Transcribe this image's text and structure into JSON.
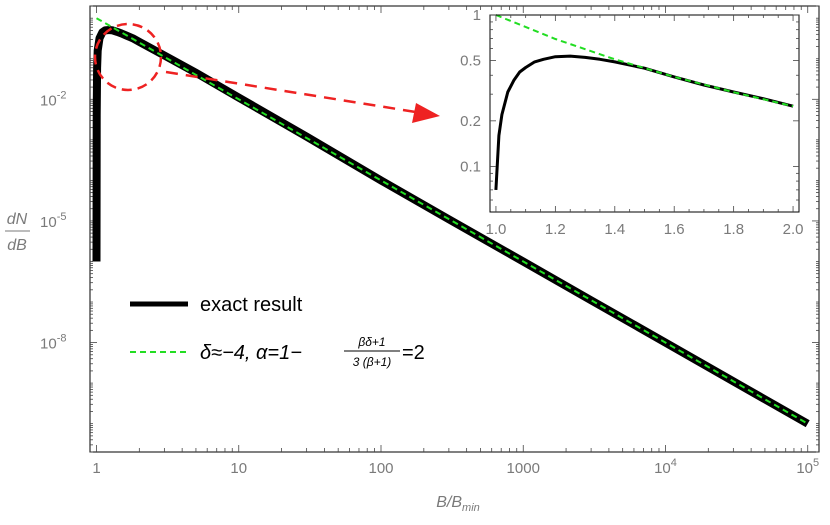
{
  "chart_data": [
    {
      "type": "line",
      "title": "",
      "xlabel": "B/B",
      "xlabel_sub": "min",
      "ylabel_num": "dN",
      "ylabel_den": "dB",
      "x_scale": "log",
      "y_scale": "log",
      "xlim": [
        0.9,
        120000
      ],
      "ylim": [
        2e-11,
        2
      ],
      "x_ticks": [
        {
          "value": 1,
          "base": "1",
          "exp": ""
        },
        {
          "value": 10,
          "base": "10",
          "exp": ""
        },
        {
          "value": 100,
          "base": "100",
          "exp": ""
        },
        {
          "value": 1000,
          "base": "1000",
          "exp": ""
        },
        {
          "value": 10000,
          "base": "10",
          "exp": "4"
        },
        {
          "value": 100000,
          "base": "10",
          "exp": "5"
        }
      ],
      "y_ticks": [
        {
          "value": 0.01,
          "base": "10",
          "exp": "-2"
        },
        {
          "value": 1e-05,
          "base": "10",
          "exp": "-5"
        },
        {
          "value": 1e-08,
          "base": "10",
          "exp": "-8"
        }
      ],
      "grid": false,
      "legend_position": "bottom-left",
      "series": [
        {
          "name": "exact result",
          "color": "#000000",
          "style": "solid",
          "x": [
            1.0,
            1.003,
            1.01,
            1.02,
            1.05,
            1.1,
            1.15,
            1.2,
            1.25,
            1.3,
            1.4,
            1.5,
            1.6,
            1.8,
            2,
            3,
            5,
            10,
            30,
            100,
            300,
            1000,
            3000,
            10000,
            30000,
            100000
          ],
          "y": [
            1e-06,
            0.004,
            0.06,
            0.16,
            0.32,
            0.45,
            0.5,
            0.51,
            0.51,
            0.5,
            0.46,
            0.42,
            0.38,
            0.32,
            0.26,
            0.12,
            0.045,
            0.011,
            0.0012,
            0.0001,
            1.1e-05,
            1e-06,
            1.1e-07,
            1e-08,
            1.1e-09,
            1e-10
          ]
        },
        {
          "name": "δ≈−4, α=1−(βδ+1)/(3(β+1))=2",
          "color": "#22dd22",
          "style": "dashed",
          "x": [
            1,
            100000
          ],
          "y": [
            1,
            1e-10
          ]
        }
      ],
      "legend": {
        "exact_label": "exact result",
        "fit_prefix": "δ≈−4, α=1−",
        "fit_frac_num": "βδ+1",
        "fit_frac_den": "3 (β+1)",
        "fit_suffix": "=2"
      }
    },
    {
      "type": "line",
      "title": "",
      "x_scale": "linear",
      "y_scale": "log",
      "xlim": [
        0.98,
        2.02
      ],
      "ylim": [
        0.05,
        1
      ],
      "x_ticks": [
        {
          "value": 1.0,
          "label": "1.0"
        },
        {
          "value": 1.2,
          "label": "1.2"
        },
        {
          "value": 1.4,
          "label": "1.4"
        },
        {
          "value": 1.6,
          "label": "1.6"
        },
        {
          "value": 1.8,
          "label": "1.8"
        },
        {
          "value": 2.0,
          "label": "2.0"
        }
      ],
      "y_ticks": [
        {
          "value": 1,
          "label": "1"
        },
        {
          "value": 0.5,
          "label": "0.5"
        },
        {
          "value": 0.2,
          "label": "0.2"
        },
        {
          "value": 0.1,
          "label": "0.1"
        }
      ],
      "series": [
        {
          "name": "exact result",
          "color": "#000000",
          "x": [
            1.0,
            1.01,
            1.02,
            1.04,
            1.06,
            1.08,
            1.1,
            1.13,
            1.16,
            1.2,
            1.25,
            1.3,
            1.35,
            1.4,
            1.5,
            1.6,
            1.7,
            1.8,
            1.9,
            2.0
          ],
          "y": [
            0.07,
            0.16,
            0.22,
            0.31,
            0.37,
            0.42,
            0.45,
            0.49,
            0.51,
            0.53,
            0.535,
            0.525,
            0.51,
            0.49,
            0.445,
            0.39,
            0.345,
            0.31,
            0.28,
            0.25
          ]
        },
        {
          "name": "δ≈−4, α=1−(βδ+1)/(3(β+1))=2",
          "color": "#22dd22",
          "x": [
            1.0,
            1.2,
            1.4,
            1.6,
            1.8,
            2.0
          ],
          "y": [
            1.0,
            0.694,
            0.51,
            0.39,
            0.309,
            0.25
          ]
        }
      ]
    }
  ]
}
